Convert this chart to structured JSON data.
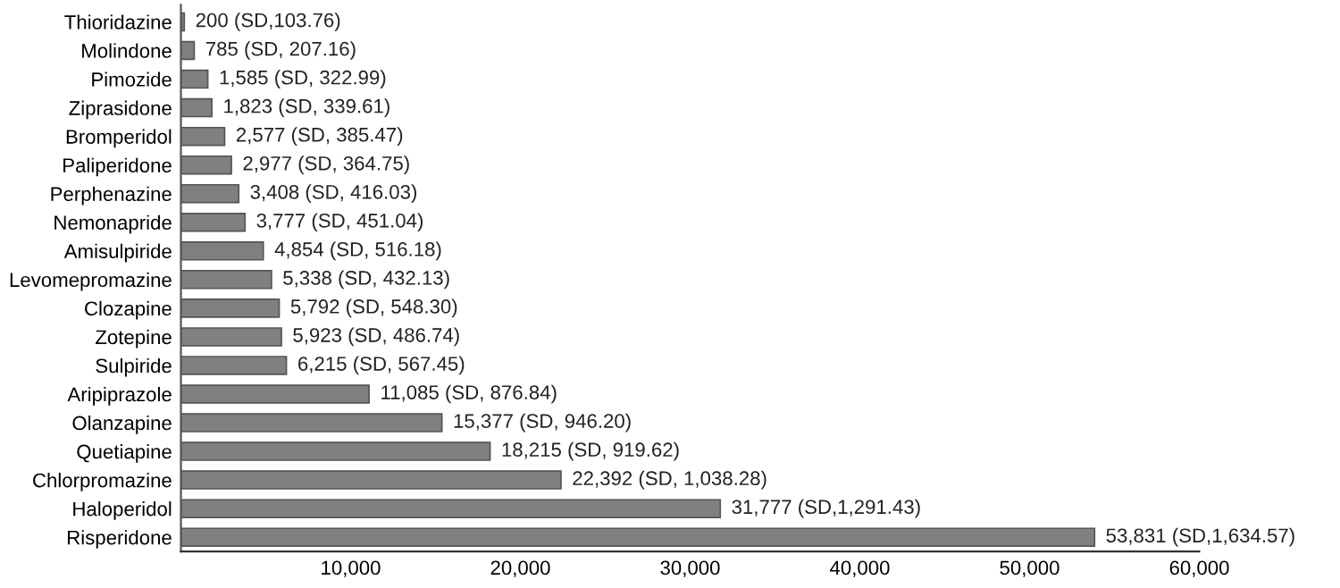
{
  "chart_data": {
    "type": "bar",
    "orientation": "horizontal",
    "categories": [
      "Thioridazine",
      "Molindone",
      "Pimozide",
      "Ziprasidone",
      "Bromperidol",
      "Paliperidone",
      "Perphenazine",
      "Nemonapride",
      "Amisulpiride",
      "Levomepromazine",
      "Clozapine",
      "Zotepine",
      "Sulpiride",
      "Aripiprazole",
      "Olanzapine",
      "Quetiapine",
      "Chlorpromazine",
      "Haloperidol",
      "Risperidone"
    ],
    "values": [
      200,
      785,
      1585,
      1823,
      2577,
      2977,
      3408,
      3777,
      4854,
      5338,
      5792,
      5923,
      6215,
      11085,
      15377,
      18215,
      22392,
      31777,
      53831
    ],
    "value_labels": [
      "200 (SD,103.76)",
      "785 (SD, 207.16)",
      "1,585 (SD, 322.99)",
      "1,823 (SD, 339.61)",
      "2,577 (SD, 385.47)",
      "2,977 (SD, 364.75)",
      "3,408 (SD, 416.03)",
      "3,777 (SD, 451.04)",
      "4,854 (SD, 516.18)",
      "5,338 (SD, 432.13)",
      "5,792 (SD, 548.30)",
      "5,923 (SD, 486.74)",
      "6,215 (SD, 567.45)",
      "11,085 (SD, 876.84)",
      "15,377 (SD, 946.20)",
      "18,215 (SD, 919.62)",
      "22,392 (SD, 1,038.28)",
      "31,777 (SD,1,291.43)",
      "53,831 (SD,1,634.57)"
    ],
    "color": "#808080",
    "xlim": [
      0,
      60000
    ],
    "xticks": [
      {
        "value": 10000,
        "label": "10,000"
      },
      {
        "value": 20000,
        "label": "20,000"
      },
      {
        "value": 30000,
        "label": "30,000"
      },
      {
        "value": 40000,
        "label": "40,000"
      },
      {
        "value": 50000,
        "label": "50,000"
      },
      {
        "value": 60000,
        "label": "60,000"
      }
    ],
    "grid": false,
    "legend": false
  }
}
